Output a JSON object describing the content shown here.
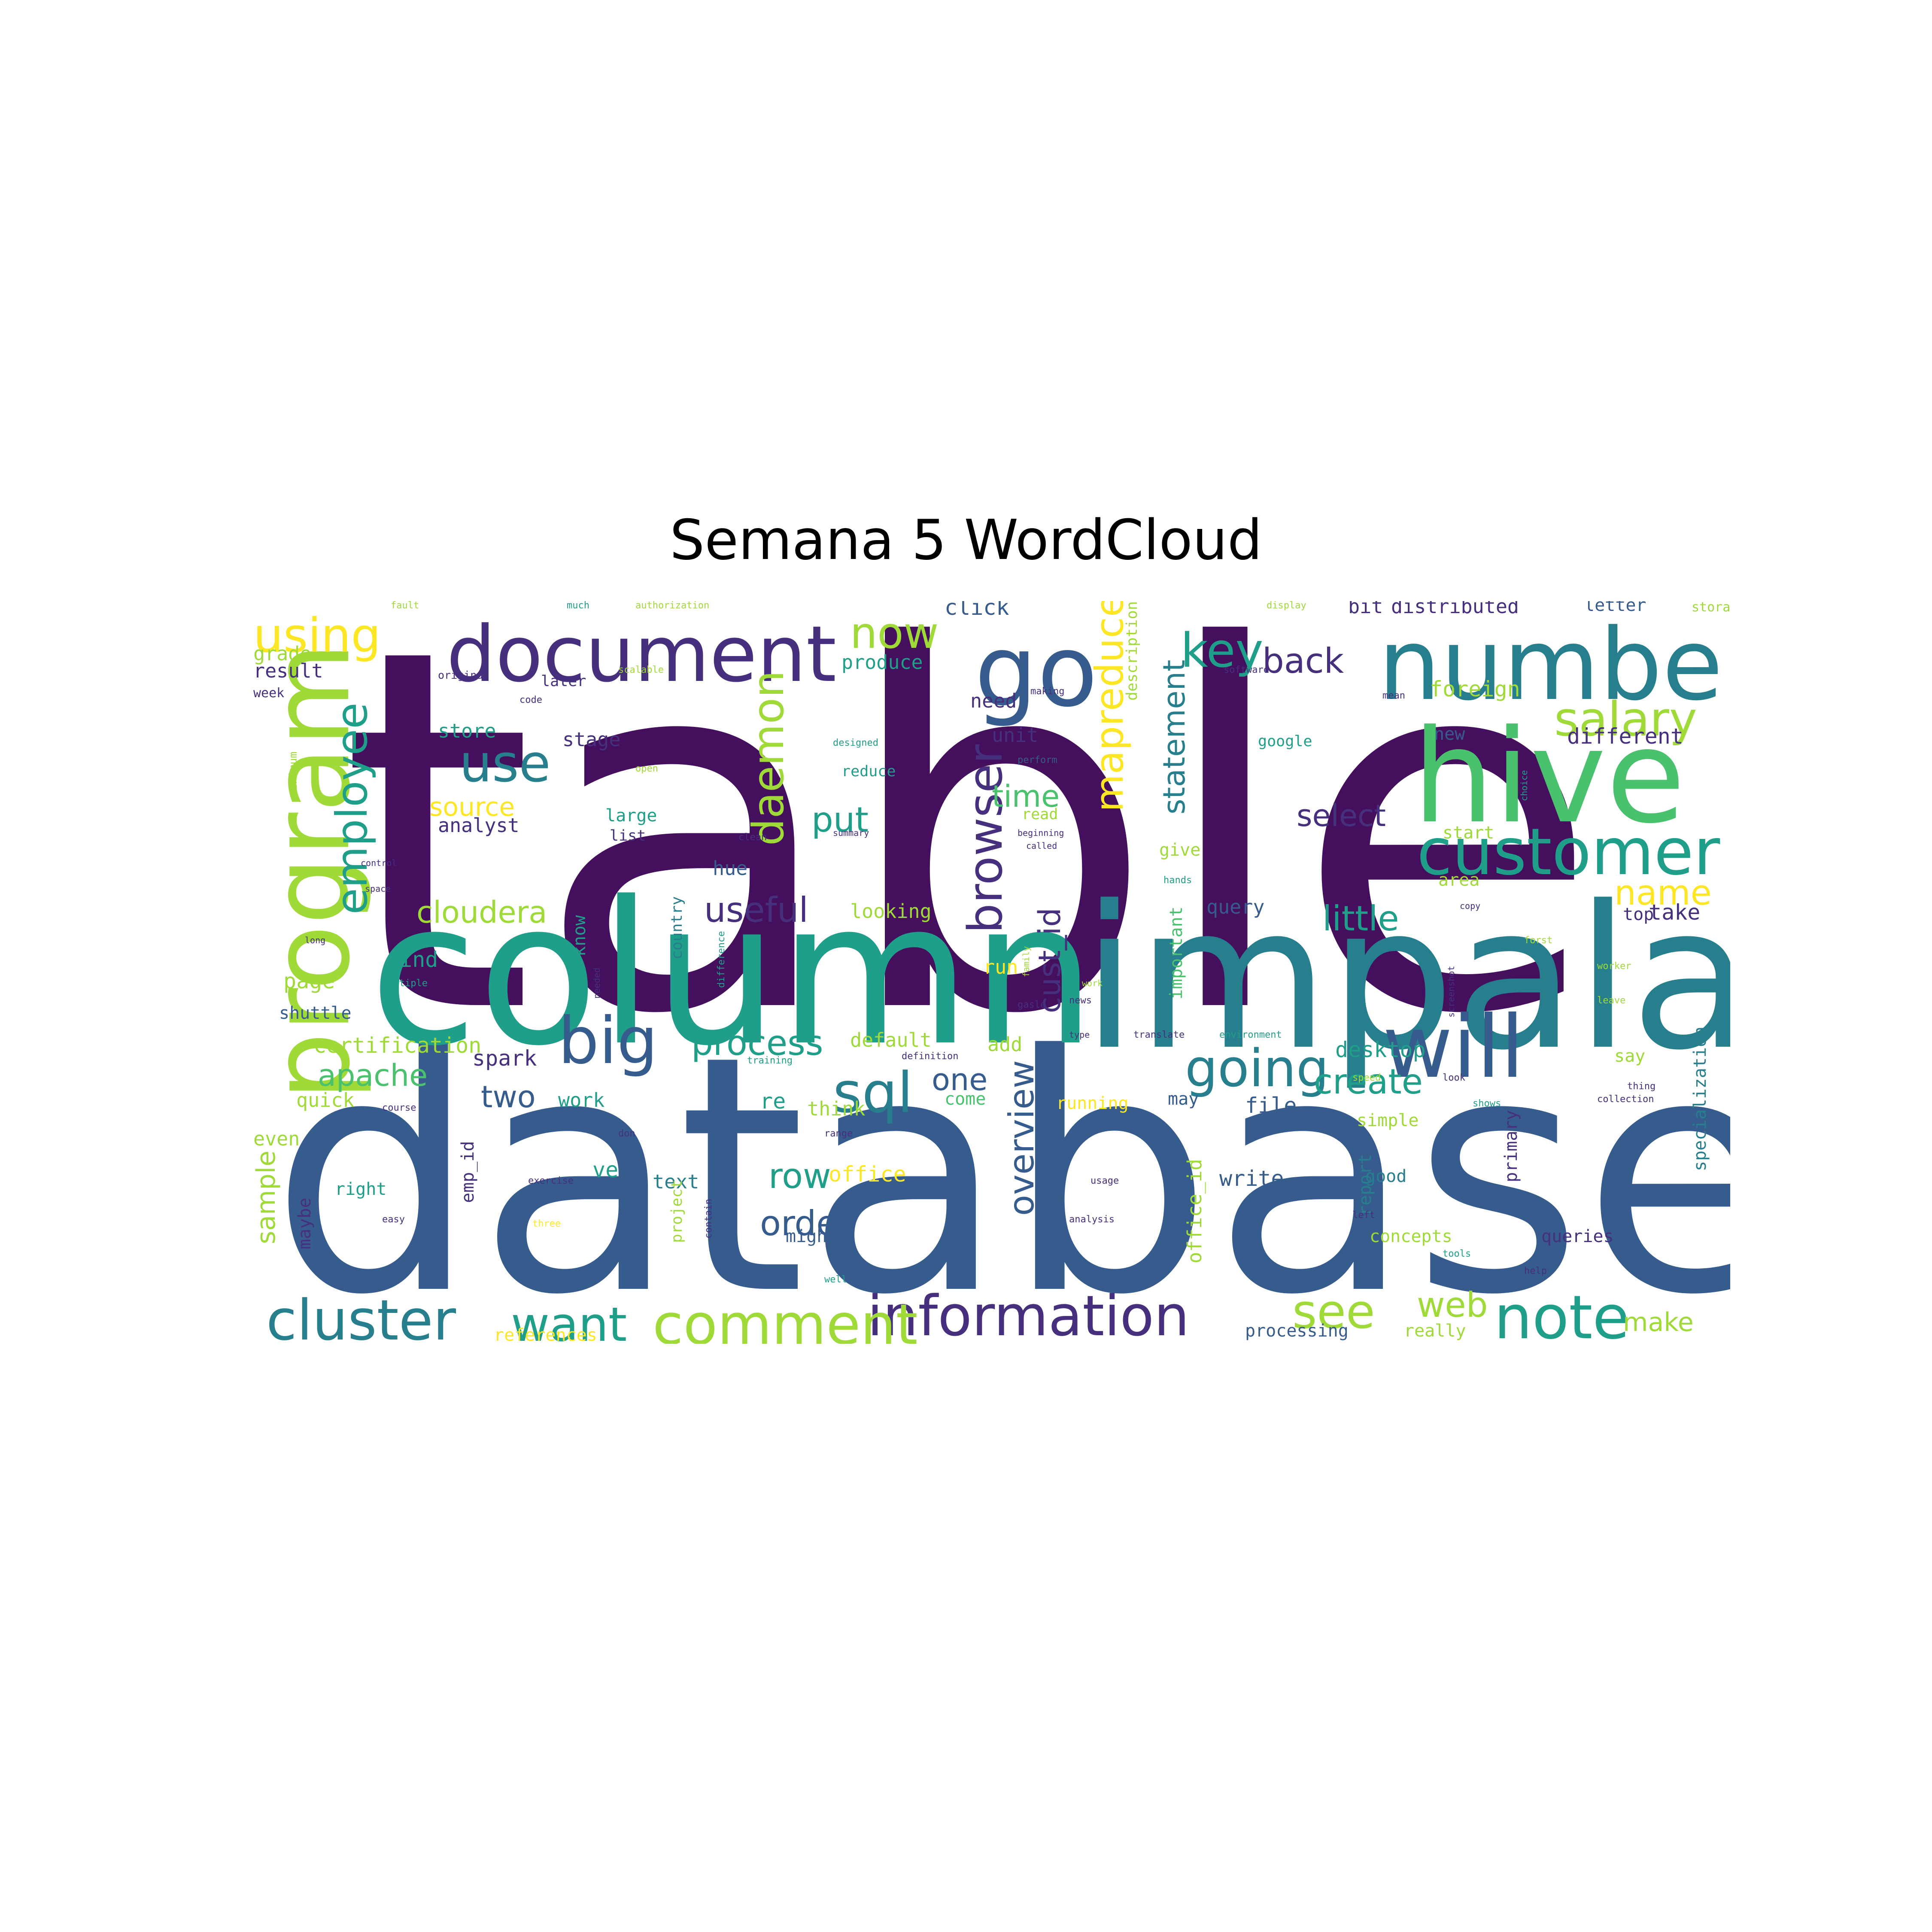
{
  "title": "Semana 5 WordCloud",
  "palette": {
    "purple": "#440f5c",
    "indigo": "#46307e",
    "blue": "#365c8d",
    "teal_blue": "#277f8e",
    "teal": "#1f9e89",
    "green": "#4ac16d",
    "lime": "#a0da39",
    "yellow": "#fde725"
  },
  "words": [
    {
      "text": "table",
      "color": "purple"
    },
    {
      "text": "database",
      "color": "blue"
    },
    {
      "text": "column",
      "color": "teal"
    },
    {
      "text": "impala",
      "color": "teal_blue"
    },
    {
      "text": "hive",
      "color": "green"
    },
    {
      "text": "number",
      "color": "teal_blue"
    },
    {
      "text": "document",
      "color": "indigo"
    },
    {
      "text": "program",
      "color": "lime"
    },
    {
      "text": "customer",
      "color": "teal"
    },
    {
      "text": "will",
      "color": "blue"
    },
    {
      "text": "big",
      "color": "blue"
    },
    {
      "text": "go",
      "color": "blue"
    },
    {
      "text": "information",
      "color": "indigo"
    },
    {
      "text": "cluster",
      "color": "teal_blue"
    },
    {
      "text": "comment",
      "color": "lime"
    },
    {
      "text": "note",
      "color": "teal"
    },
    {
      "text": "going",
      "color": "teal_blue"
    },
    {
      "text": "salary",
      "color": "lime"
    },
    {
      "text": "use",
      "color": "teal_blue"
    },
    {
      "text": "key",
      "color": "teal"
    },
    {
      "text": "want",
      "color": "teal"
    },
    {
      "text": "sql",
      "color": "teal_blue"
    },
    {
      "text": "see",
      "color": "lime"
    },
    {
      "text": "now",
      "color": "lime"
    },
    {
      "text": "using",
      "color": "yellow"
    },
    {
      "text": "browser",
      "color": "indigo"
    },
    {
      "text": "employee",
      "color": "teal"
    },
    {
      "text": "daemon",
      "color": "lime"
    },
    {
      "text": "mapreduce",
      "color": "yellow"
    },
    {
      "text": "statement",
      "color": "teal_blue"
    },
    {
      "text": "overview",
      "color": "blue"
    },
    {
      "text": "cust_id",
      "color": "indigo"
    },
    {
      "text": "name",
      "color": "yellow"
    },
    {
      "text": "little",
      "color": "teal"
    },
    {
      "text": "create",
      "color": "teal"
    },
    {
      "text": "process",
      "color": "teal"
    },
    {
      "text": "row",
      "color": "teal"
    },
    {
      "text": "order",
      "color": "blue"
    },
    {
      "text": "useful",
      "color": "indigo"
    },
    {
      "text": "back",
      "color": "indigo"
    },
    {
      "text": "select",
      "color": "indigo"
    },
    {
      "text": "put",
      "color": "teal"
    },
    {
      "text": "time",
      "color": "green"
    },
    {
      "text": "cloudera",
      "color": "lime"
    },
    {
      "text": "apache",
      "color": "green"
    },
    {
      "text": "two",
      "color": "blue"
    },
    {
      "text": "source",
      "color": "yellow"
    },
    {
      "text": "web",
      "color": "lime"
    },
    {
      "text": "make",
      "color": "lime"
    },
    {
      "text": "one",
      "color": "blue"
    },
    {
      "text": "sample",
      "color": "lime"
    },
    {
      "text": "distributed",
      "color": "indigo"
    },
    {
      "text": "foreign",
      "color": "lime"
    },
    {
      "text": "different",
      "color": "indigo"
    },
    {
      "text": "produce",
      "color": "teal"
    },
    {
      "text": "need",
      "color": "indigo"
    },
    {
      "text": "unit",
      "color": "indigo"
    },
    {
      "text": "stage",
      "color": "indigo"
    },
    {
      "text": "store",
      "color": "teal"
    },
    {
      "text": "result",
      "color": "indigo"
    },
    {
      "text": "grade",
      "color": "lime"
    },
    {
      "text": "analyst",
      "color": "indigo"
    },
    {
      "text": "large",
      "color": "teal"
    },
    {
      "text": "list",
      "color": "indigo"
    },
    {
      "text": "hue",
      "color": "blue"
    },
    {
      "text": "looking",
      "color": "lime"
    },
    {
      "text": "query",
      "color": "blue"
    },
    {
      "text": "give",
      "color": "lime"
    },
    {
      "text": "top",
      "color": "indigo"
    },
    {
      "text": "take",
      "color": "indigo"
    },
    {
      "text": "find",
      "color": "teal"
    },
    {
      "text": "page",
      "color": "lime"
    },
    {
      "text": "shuttle",
      "color": "blue"
    },
    {
      "text": "certification",
      "color": "lime"
    },
    {
      "text": "spark",
      "color": "indigo"
    },
    {
      "text": "quick",
      "color": "lime"
    },
    {
      "text": "even",
      "color": "lime"
    },
    {
      "text": "work",
      "color": "teal"
    },
    {
      "text": "come",
      "color": "green"
    },
    {
      "text": "think",
      "color": "lime"
    },
    {
      "text": "running",
      "color": "yellow"
    },
    {
      "text": "may",
      "color": "blue"
    },
    {
      "text": "file",
      "color": "blue"
    },
    {
      "text": "simple",
      "color": "lime"
    },
    {
      "text": "default",
      "color": "lime"
    },
    {
      "text": "add",
      "color": "lime"
    },
    {
      "text": "run",
      "color": "yellow"
    },
    {
      "text": "desktop",
      "color": "teal"
    },
    {
      "text": "say",
      "color": "lime"
    },
    {
      "text": "text",
      "color": "teal_blue"
    },
    {
      "text": "might",
      "color": "blue"
    },
    {
      "text": "office",
      "color": "yellow"
    },
    {
      "text": "write",
      "color": "blue"
    },
    {
      "text": "good",
      "color": "teal_blue"
    },
    {
      "text": "right",
      "color": "teal"
    },
    {
      "text": "concepts",
      "color": "lime"
    },
    {
      "text": "queries",
      "color": "indigo"
    },
    {
      "text": "references",
      "color": "yellow"
    },
    {
      "text": "processing",
      "color": "blue"
    },
    {
      "text": "really",
      "color": "lime"
    },
    {
      "text": "maybe",
      "color": "indigo"
    },
    {
      "text": "emp_id",
      "color": "indigo"
    },
    {
      "text": "office_id",
      "color": "lime"
    },
    {
      "text": "report",
      "color": "teal_blue"
    },
    {
      "text": "primary",
      "color": "indigo"
    },
    {
      "text": "specialization",
      "color": "teal_blue"
    },
    {
      "text": "describing",
      "color": "indigo"
    },
    {
      "text": "country",
      "color": "teal_blue"
    },
    {
      "text": "know",
      "color": "teal"
    },
    {
      "text": "project",
      "color": "lime"
    },
    {
      "text": "important",
      "color": "green"
    },
    {
      "text": "description",
      "color": "lime"
    },
    {
      "text": "letter",
      "color": "blue"
    },
    {
      "text": "storage",
      "color": "lime"
    },
    {
      "text": "bit",
      "color": "indigo"
    },
    {
      "text": "new",
      "color": "blue"
    },
    {
      "text": "google",
      "color": "teal"
    },
    {
      "text": "reduce",
      "color": "teal"
    },
    {
      "text": "read",
      "color": "lime"
    },
    {
      "text": "click",
      "color": "blue"
    },
    {
      "text": "later",
      "color": "indigo"
    },
    {
      "text": "original",
      "color": "indigo"
    },
    {
      "text": "week",
      "color": "indigo"
    },
    {
      "text": "minimum",
      "color": "lime"
    },
    {
      "text": "fault",
      "color": "lime"
    },
    {
      "text": "much",
      "color": "teal"
    },
    {
      "text": "authorization",
      "color": "lime"
    },
    {
      "text": "display",
      "color": "lime"
    },
    {
      "text": "code",
      "color": "indigo"
    },
    {
      "text": "scalable",
      "color": "lime"
    },
    {
      "text": "designed",
      "color": "teal"
    },
    {
      "text": "perform",
      "color": "blue"
    },
    {
      "text": "making",
      "color": "indigo"
    },
    {
      "text": "software",
      "color": "indigo"
    },
    {
      "text": "mean",
      "color": "indigo"
    },
    {
      "text": "start",
      "color": "lime"
    },
    {
      "text": "area",
      "color": "lime"
    },
    {
      "text": "summary",
      "color": "indigo"
    },
    {
      "text": "beginning",
      "color": "indigo"
    },
    {
      "text": "called",
      "color": "indigo"
    },
    {
      "text": "clean",
      "color": "indigo"
    },
    {
      "text": "open",
      "color": "lime"
    },
    {
      "text": "hands",
      "color": "teal"
    },
    {
      "text": "copy",
      "color": "indigo"
    },
    {
      "text": "long",
      "color": "indigo"
    },
    {
      "text": "needed",
      "color": "indigo"
    },
    {
      "text": "multiple",
      "color": "teal"
    },
    {
      "text": "difference",
      "color": "teal"
    },
    {
      "text": "training",
      "color": "teal"
    },
    {
      "text": "definition",
      "color": "indigo"
    },
    {
      "text": "translate",
      "color": "indigo"
    },
    {
      "text": "environment",
      "color": "teal"
    },
    {
      "text": "speed",
      "color": "lime"
    },
    {
      "text": "look",
      "color": "indigo"
    },
    {
      "text": "thing",
      "color": "indigo"
    },
    {
      "text": "collection",
      "color": "indigo"
    },
    {
      "text": "shows",
      "color": "teal"
    },
    {
      "text": "range",
      "color": "indigo"
    },
    {
      "text": "exercise",
      "color": "indigo"
    },
    {
      "text": "easy",
      "color": "indigo"
    },
    {
      "text": "contain",
      "color": "indigo"
    },
    {
      "text": "three",
      "color": "yellow"
    },
    {
      "text": "well",
      "color": "teal"
    },
    {
      "text": "don",
      "color": "indigo"
    },
    {
      "text": "usage",
      "color": "indigo"
    },
    {
      "text": "analysis",
      "color": "indigo"
    },
    {
      "text": "left",
      "color": "indigo"
    },
    {
      "text": "tools",
      "color": "teal"
    },
    {
      "text": "help",
      "color": "indigo"
    },
    {
      "text": "news",
      "color": "indigo"
    },
    {
      "text": "gasle",
      "color": "indigo"
    },
    {
      "text": "family",
      "color": "lime"
    },
    {
      "text": "work",
      "color": "lime"
    },
    {
      "text": "type",
      "color": "indigo"
    },
    {
      "text": "choice",
      "color": "teal"
    },
    {
      "text": "leave",
      "color": "lime"
    },
    {
      "text": "forst",
      "color": "lime"
    },
    {
      "text": "worker",
      "color": "lime"
    },
    {
      "text": "screenshot",
      "color": "indigo"
    },
    {
      "text": "control",
      "color": "indigo"
    },
    {
      "text": "space",
      "color": "indigo"
    },
    {
      "text": "course",
      "color": "indigo"
    },
    {
      "text": "ve",
      "color": "teal"
    },
    {
      "text": "re",
      "color": "teal"
    }
  ]
}
